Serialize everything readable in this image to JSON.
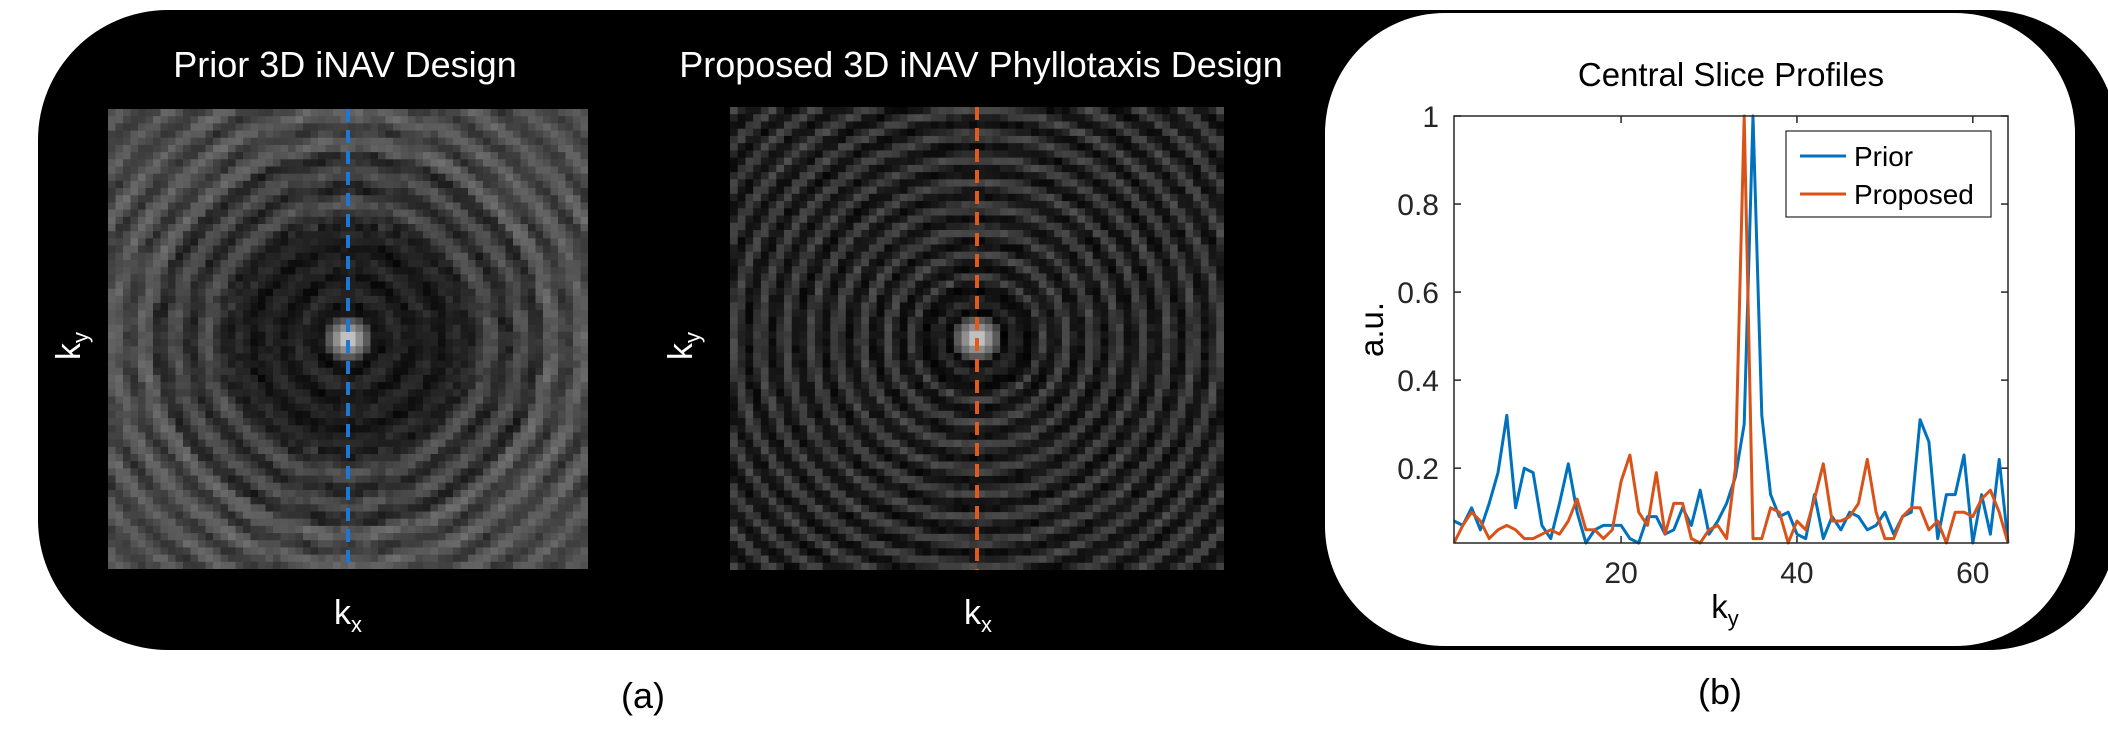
{
  "panel_a": {
    "prior": {
      "title": "Prior 3D iNAV Design",
      "xlabel": "k",
      "xsub": "x",
      "ylabel": "k",
      "ysub": "y",
      "line_color": "#1f77d4"
    },
    "proposed": {
      "title": "Proposed 3D iNAV Phyllotaxis Design",
      "xlabel": "k",
      "xsub": "x",
      "ylabel": "k",
      "ysub": "y",
      "line_color": "#e05a1e"
    }
  },
  "captions": {
    "a": "(a)",
    "b": "(b)"
  },
  "chart_data": {
    "type": "line",
    "title": "Central Slice Profiles",
    "xlabel": "k",
    "xlabel_sub": "y",
    "ylabel": "a.u.",
    "xlim": [
      1,
      64
    ],
    "ylim": [
      0.03,
      1
    ],
    "xticks": [
      20,
      40,
      60
    ],
    "yticks": [
      0.2,
      0.4,
      0.6,
      0.8,
      1
    ],
    "ytick_labels": [
      "0.2",
      "0.4",
      "0.6",
      "0.8",
      "1"
    ],
    "legend_position": "top-right",
    "grid": false,
    "series": [
      {
        "name": "Prior",
        "color": "#0072BD",
        "x": [
          1,
          2,
          3,
          4,
          5,
          6,
          7,
          8,
          9,
          10,
          11,
          12,
          13,
          14,
          15,
          16,
          17,
          18,
          19,
          20,
          21,
          22,
          23,
          24,
          25,
          26,
          27,
          28,
          29,
          30,
          31,
          32,
          33,
          34,
          35,
          36,
          37,
          38,
          39,
          40,
          41,
          42,
          43,
          44,
          45,
          46,
          47,
          48,
          49,
          50,
          51,
          52,
          53,
          54,
          55,
          56,
          57,
          58,
          59,
          60,
          61,
          62,
          63,
          64
        ],
        "values": [
          0.08,
          0.07,
          0.11,
          0.06,
          0.12,
          0.19,
          0.32,
          0.11,
          0.2,
          0.19,
          0.07,
          0.04,
          0.12,
          0.21,
          0.1,
          0.03,
          0.06,
          0.07,
          0.07,
          0.07,
          0.04,
          0.03,
          0.09,
          0.09,
          0.05,
          0.06,
          0.11,
          0.07,
          0.15,
          0.05,
          0.08,
          0.12,
          0.18,
          0.3,
          1.0,
          0.32,
          0.14,
          0.09,
          0.1,
          0.05,
          0.04,
          0.14,
          0.04,
          0.09,
          0.06,
          0.1,
          0.09,
          0.06,
          0.07,
          0.1,
          0.05,
          0.09,
          0.1,
          0.31,
          0.26,
          0.04,
          0.14,
          0.14,
          0.23,
          0.03,
          0.14,
          0.05,
          0.22,
          0.03
        ]
      },
      {
        "name": "Proposed",
        "color": "#D95319",
        "x": [
          1,
          2,
          3,
          4,
          5,
          6,
          7,
          8,
          9,
          10,
          11,
          12,
          13,
          14,
          15,
          16,
          17,
          18,
          19,
          20,
          21,
          22,
          23,
          24,
          25,
          26,
          27,
          28,
          29,
          30,
          31,
          32,
          33,
          34,
          35,
          36,
          37,
          38,
          39,
          40,
          41,
          42,
          43,
          44,
          45,
          46,
          47,
          48,
          49,
          50,
          51,
          52,
          53,
          54,
          55,
          56,
          57,
          58,
          59,
          60,
          61,
          62,
          63,
          64
        ],
        "values": [
          0.03,
          0.07,
          0.1,
          0.08,
          0.04,
          0.06,
          0.07,
          0.06,
          0.04,
          0.04,
          0.05,
          0.06,
          0.05,
          0.08,
          0.13,
          0.06,
          0.06,
          0.04,
          0.06,
          0.17,
          0.23,
          0.1,
          0.07,
          0.19,
          0.05,
          0.12,
          0.12,
          0.04,
          0.03,
          0.06,
          0.07,
          0.04,
          0.2,
          1.0,
          0.04,
          0.04,
          0.11,
          0.1,
          0.03,
          0.08,
          0.06,
          0.13,
          0.21,
          0.08,
          0.08,
          0.09,
          0.12,
          0.22,
          0.1,
          0.04,
          0.04,
          0.09,
          0.11,
          0.11,
          0.06,
          0.08,
          0.03,
          0.1,
          0.1,
          0.09,
          0.13,
          0.15,
          0.1,
          0.03
        ]
      }
    ]
  }
}
